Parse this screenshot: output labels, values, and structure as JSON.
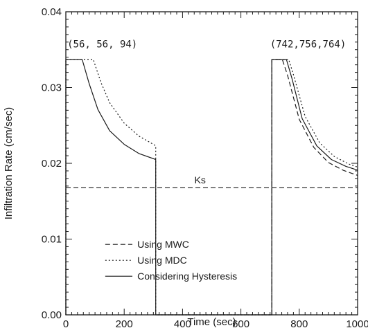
{
  "chart_data": {
    "type": "line",
    "xlabel": "Time (sec)",
    "ylabel": "Infiltration Rate (cm/sec)",
    "xlim": [
      0,
      1000
    ],
    "ylim": [
      0,
      0.04
    ],
    "xticks": [
      "0",
      "200",
      "400",
      "600",
      "800",
      "1000"
    ],
    "yticks": [
      "0.00",
      "0.01",
      "0.02",
      "0.03",
      "0.04"
    ],
    "grid": false,
    "legend_position": "bottom-center",
    "series": [
      {
        "name": "Using MWC",
        "style": "dashed",
        "x": [
          706,
          706,
          742,
          760,
          800,
          850,
          900,
          950,
          1000
        ],
        "y": [
          0,
          0.0337,
          0.0337,
          0.0316,
          0.0258,
          0.0221,
          0.0201,
          0.0191,
          0.0184
        ]
      },
      {
        "name": "Using MDC",
        "style": "dotted",
        "x": [
          0,
          0,
          94,
          120,
          150,
          200,
          250,
          300,
          308,
          308,
          706,
          706,
          764,
          780,
          820,
          870,
          920,
          970,
          1000
        ],
        "y": [
          0,
          0.0337,
          0.0337,
          0.0307,
          0.028,
          0.0253,
          0.0236,
          0.0225,
          0.0223,
          0,
          0,
          0.0337,
          0.0337,
          0.0317,
          0.0262,
          0.0227,
          0.0209,
          0.0199,
          0.0195
        ]
      },
      {
        "name": "Considering Hysteresis",
        "style": "solid",
        "x": [
          0,
          0,
          56,
          80,
          110,
          150,
          200,
          250,
          308,
          308,
          706,
          706,
          756,
          775,
          810,
          860,
          910,
          960,
          1000
        ],
        "y": [
          0,
          0.0337,
          0.0337,
          0.0305,
          0.0271,
          0.0243,
          0.0225,
          0.0213,
          0.0205,
          0,
          0,
          0.0337,
          0.0337,
          0.0312,
          0.0259,
          0.0223,
          0.0205,
          0.0196,
          0.0191
        ]
      }
    ],
    "reference_line": {
      "label": "Ks",
      "y": 0.0168,
      "style": "dashed"
    },
    "annotations": [
      {
        "text": "(56, 56, 94)",
        "x": 5,
        "y": 0.0353
      },
      {
        "text": "(742,756,764)",
        "x": 700,
        "y": 0.0353
      }
    ]
  }
}
